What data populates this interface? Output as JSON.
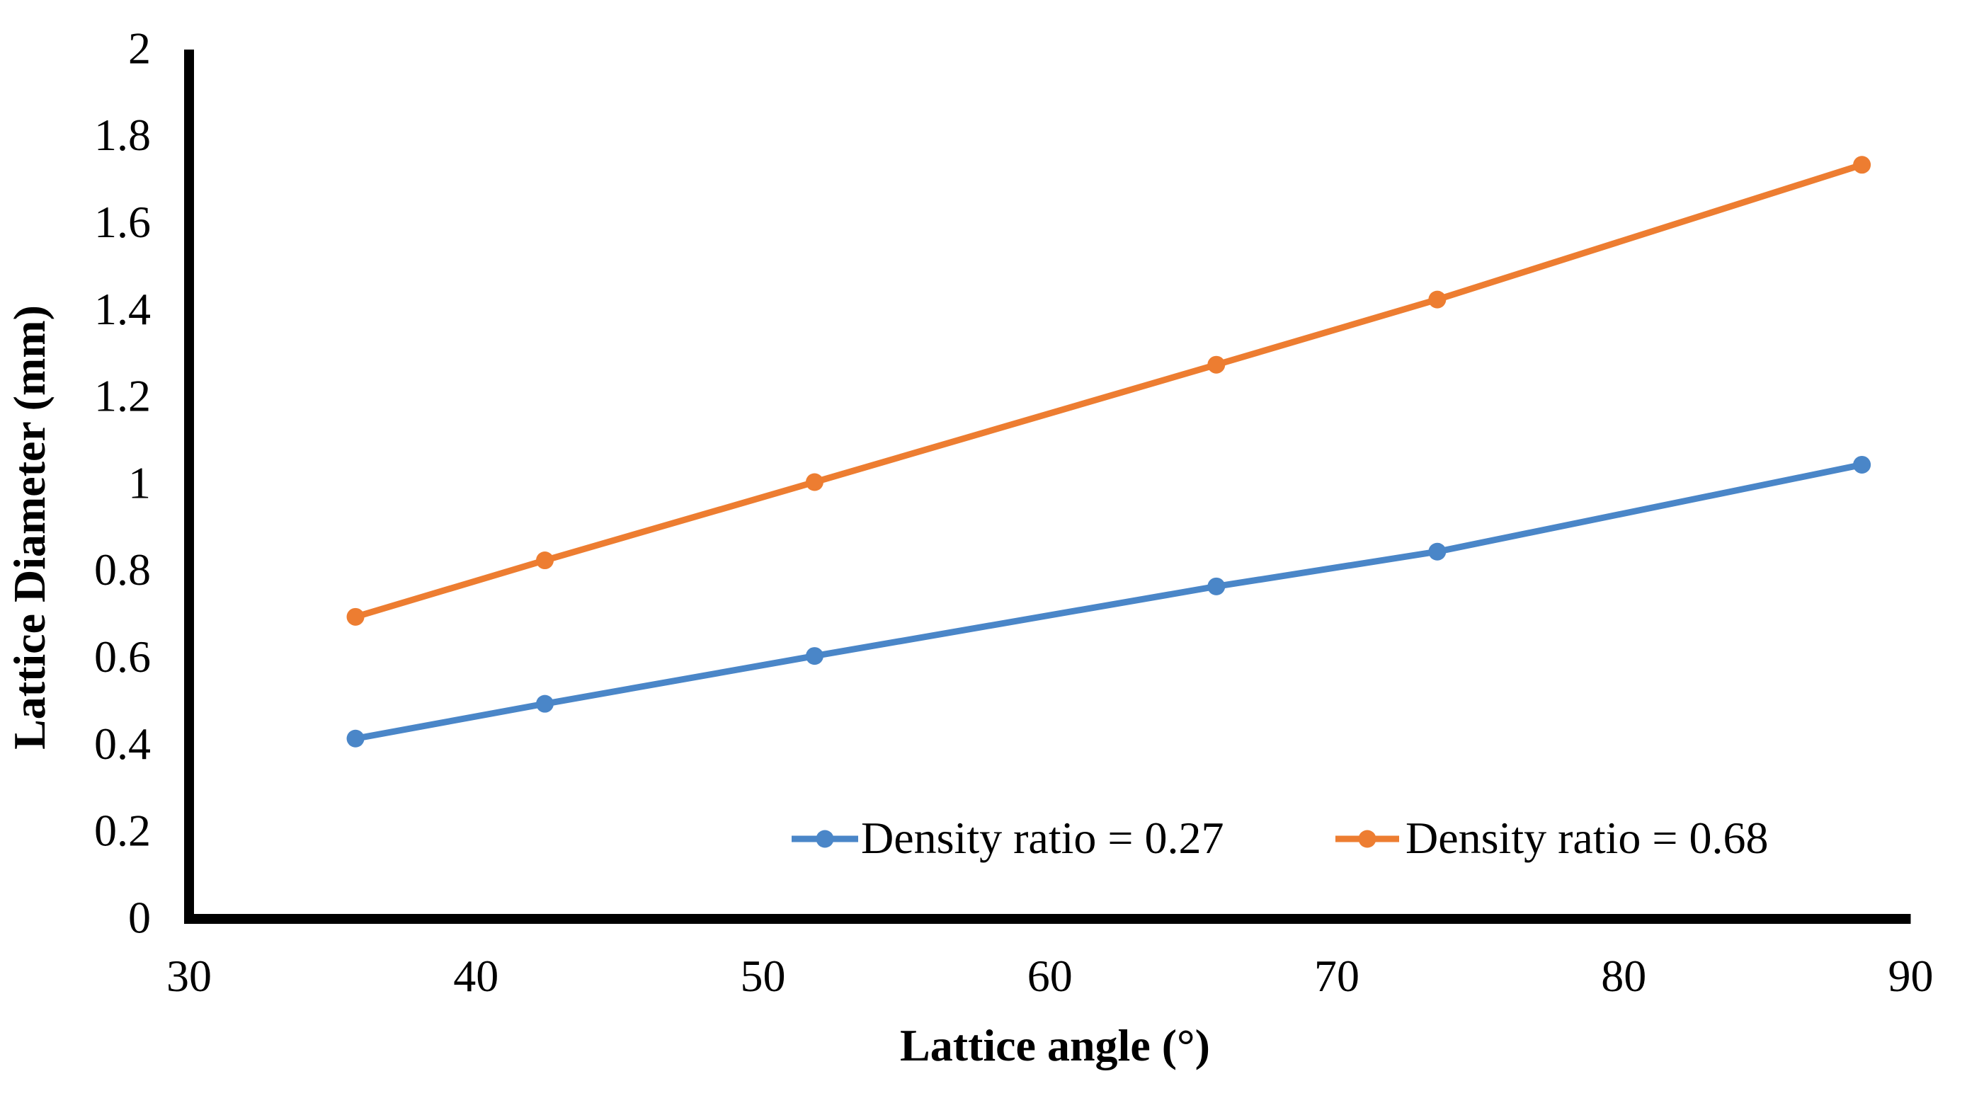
{
  "chart_data": {
    "type": "line",
    "title": "",
    "xlabel": "Lattice angle (°)",
    "ylabel": "Lattice Diameter (mm)",
    "xlim": [
      30,
      90
    ],
    "ylim": [
      0,
      2
    ],
    "grid": false,
    "legend_position": "inside-bottom-right",
    "axis_color": "#000000",
    "marker": "circle",
    "x": [
      35.8,
      42.4,
      51.8,
      65.8,
      73.5,
      88.3
    ],
    "series": [
      {
        "name": "Density ratio = 0.27",
        "color": "#4A86C8",
        "values": [
          0.41,
          0.49,
          0.6,
          0.76,
          0.84,
          1.04
        ]
      },
      {
        "name": "Density ratio = 0.68",
        "color": "#ED7D31",
        "values": [
          0.69,
          0.82,
          1.0,
          1.27,
          1.42,
          1.73
        ]
      }
    ],
    "xticks": {
      "values": [
        30,
        40,
        50,
        60,
        70,
        80,
        90
      ],
      "labels": [
        "30",
        "40",
        "50",
        "60",
        "70",
        "80",
        "90"
      ]
    },
    "yticks": {
      "values": [
        0,
        0.2,
        0.4,
        0.6,
        0.8,
        1,
        1.2,
        1.4,
        1.6,
        1.8,
        2
      ],
      "labels": [
        "0",
        "0.2",
        "0.4",
        "0.6",
        "0.8",
        "1",
        "1.2",
        "1.4",
        "1.6",
        "1.8",
        "2"
      ]
    }
  }
}
